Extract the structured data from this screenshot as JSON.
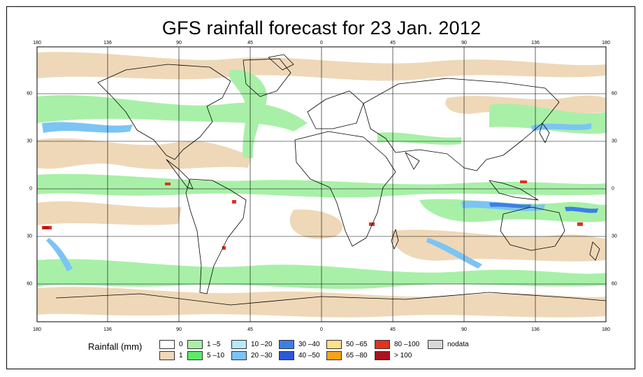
{
  "map": {
    "title": "GFS rainfall forecast for 23 Jan. 2012",
    "longitude_ticks": [
      "180",
      "136",
      "90",
      "45",
      "0",
      "45",
      "90",
      "136",
      "180"
    ],
    "latitude_ticks": [
      "60",
      "30",
      "0",
      "30",
      "60"
    ],
    "land_outline_color": "#000000",
    "ocean_color": "#ffffff"
  },
  "legend": {
    "title": "Rainfall (mm)",
    "classes": [
      {
        "label": "0",
        "color": "#ffffff"
      },
      {
        "label": "1",
        "color": "#efd8b8"
      },
      {
        "label": "1 –5",
        "color": "#a8f0a8"
      },
      {
        "label": "5 –10",
        "color": "#5fe86a"
      },
      {
        "label": "10 –20",
        "color": "#b4eaf8"
      },
      {
        "label": "20 –30",
        "color": "#7cc4f4"
      },
      {
        "label": "30 –40",
        "color": "#3d7fe6"
      },
      {
        "label": "40 –50",
        "color": "#2b58d4"
      },
      {
        "label": "50 –65",
        "color": "#fce08a"
      },
      {
        "label": "65 –80",
        "color": "#f7a21b"
      },
      {
        "label": "80 –100",
        "color": "#e0321e"
      },
      {
        "label": "> 100",
        "color": "#a8141e"
      },
      {
        "label": "nodata",
        "color": "#d8d8d8"
      }
    ]
  }
}
